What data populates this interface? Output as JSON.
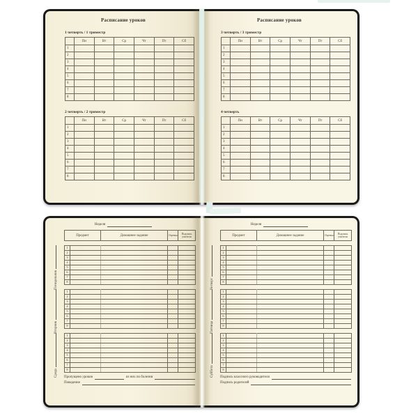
{
  "schedule": {
    "title": "Расписание уроков",
    "day_headers": [
      "Пн",
      "Вт",
      "Ср",
      "Чт",
      "Пт",
      "Сб"
    ],
    "lesson_numbers": [
      "1",
      "2",
      "3",
      "4",
      "5",
      "6",
      "7",
      "8"
    ],
    "tables": [
      {
        "label": "1 четверть  /  1 триместр"
      },
      {
        "label": "2 четверть  /  2 триместр"
      },
      {
        "label": "3 четверть  /  3 триместр"
      },
      {
        "label": "4 четверть"
      }
    ]
  },
  "week": {
    "week_label": "Неделя",
    "columns": [
      "Предмет",
      "Домашнее задание",
      "Оценка",
      "Подпись учителя"
    ],
    "lesson_numbers": [
      "1",
      "2",
      "3",
      "4",
      "5",
      "6",
      "7",
      "8"
    ],
    "pages": [
      {
        "days": [
          "Понедельник",
          "Вторник",
          "Среда"
        ]
      },
      {
        "days": [
          "Четверг",
          "Пятница",
          "Суббота"
        ]
      }
    ],
    "footers": {
      "left": {
        "line1_a": "Пропущено уроков",
        "line1_b": "из них по болезни",
        "line2": "Поведение"
      },
      "right": {
        "line1": "Подпись классного руководителя",
        "line2": "Подпись родителей"
      }
    }
  },
  "colors": {
    "cover": "#1a1a18",
    "page": "#f8f4e2",
    "table_line": "#6b6859",
    "text": "#3a382e",
    "bookmark_ribbon": "#e3efeb"
  }
}
